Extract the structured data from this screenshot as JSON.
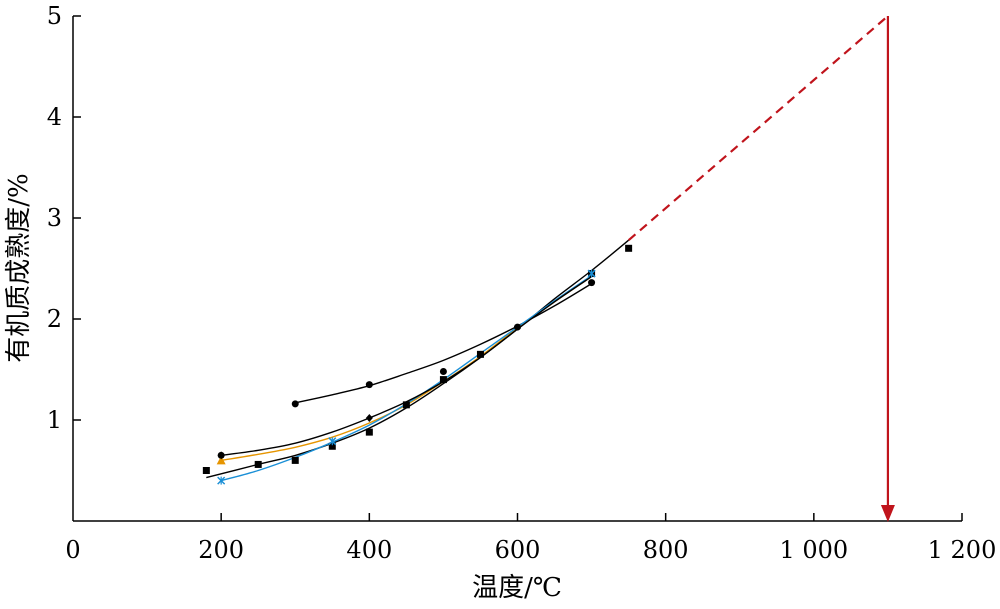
{
  "chart_data": {
    "type": "scatter",
    "xlabel": "温度/℃",
    "ylabel": "有机质成熟度/%",
    "xlim": [
      0,
      1200
    ],
    "ylim": [
      0,
      5
    ],
    "x_ticks": [
      {
        "value": 0,
        "label": "0"
      },
      {
        "value": 200,
        "label": "200"
      },
      {
        "value": 400,
        "label": "400"
      },
      {
        "value": 600,
        "label": "600"
      },
      {
        "value": 800,
        "label": "800"
      },
      {
        "value": 1000,
        "label": "1 000"
      },
      {
        "value": 1200,
        "label": "1 200"
      }
    ],
    "y_ticks": [
      {
        "value": 1,
        "label": "1"
      },
      {
        "value": 2,
        "label": "2"
      },
      {
        "value": 3,
        "label": "3"
      },
      {
        "value": 4,
        "label": "4"
      },
      {
        "value": 5,
        "label": "5"
      }
    ],
    "grid": false,
    "series": [
      {
        "marker": "circle",
        "color": "#000000",
        "points": [
          [
            200,
            0.65
          ],
          [
            300,
            1.16
          ],
          [
            400,
            1.35
          ],
          [
            500,
            1.48
          ],
          [
            600,
            1.92
          ],
          [
            700,
            2.36
          ]
        ],
        "fit": [
          [
            300,
            1.17
          ],
          [
            350,
            1.25
          ],
          [
            400,
            1.34
          ],
          [
            450,
            1.46
          ],
          [
            500,
            1.59
          ],
          [
            550,
            1.75
          ],
          [
            600,
            1.93
          ],
          [
            650,
            2.13
          ],
          [
            700,
            2.35
          ]
        ]
      },
      {
        "marker": "square",
        "color": "#000000",
        "points": [
          [
            180,
            0.5
          ],
          [
            250,
            0.56
          ],
          [
            300,
            0.6
          ],
          [
            350,
            0.74
          ],
          [
            400,
            0.88
          ],
          [
            450,
            1.15
          ],
          [
            500,
            1.4
          ],
          [
            550,
            1.65
          ],
          [
            700,
            2.45
          ],
          [
            750,
            2.7
          ]
        ],
        "fit": [
          [
            180,
            0.43
          ],
          [
            250,
            0.56
          ],
          [
            300,
            0.65
          ],
          [
            350,
            0.77
          ],
          [
            400,
            0.92
          ],
          [
            450,
            1.12
          ],
          [
            500,
            1.36
          ],
          [
            550,
            1.62
          ],
          [
            600,
            1.9
          ],
          [
            650,
            2.2
          ],
          [
            700,
            2.48
          ],
          [
            750,
            2.78
          ]
        ]
      },
      {
        "marker": "triangle",
        "color": "#e69500",
        "points": [
          [
            200,
            0.6
          ]
        ],
        "fit": [
          [
            200,
            0.6
          ],
          [
            250,
            0.66
          ],
          [
            300,
            0.73
          ],
          [
            350,
            0.83
          ],
          [
            400,
            0.97
          ],
          [
            450,
            1.15
          ],
          [
            500,
            1.38
          ],
          [
            550,
            1.63
          ],
          [
            600,
            1.91
          ],
          [
            650,
            2.17
          ],
          [
            700,
            2.42
          ]
        ]
      },
      {
        "marker": "cross",
        "color": "#1a8fd6",
        "points": [
          [
            200,
            0.4
          ],
          [
            350,
            0.79
          ],
          [
            700,
            2.45
          ]
        ],
        "fit": [
          [
            200,
            0.4
          ],
          [
            250,
            0.5
          ],
          [
            300,
            0.63
          ],
          [
            350,
            0.78
          ],
          [
            400,
            0.95
          ],
          [
            450,
            1.16
          ],
          [
            500,
            1.4
          ],
          [
            550,
            1.66
          ],
          [
            600,
            1.92
          ],
          [
            650,
            2.18
          ],
          [
            700,
            2.43
          ]
        ]
      },
      {
        "marker": "diamond",
        "color": "#000000",
        "points": [
          [
            200,
            0.65
          ],
          [
            400,
            1.02
          ]
        ],
        "fit": [
          [
            200,
            0.65
          ],
          [
            250,
            0.7
          ],
          [
            300,
            0.77
          ],
          [
            350,
            0.88
          ],
          [
            400,
            1.02
          ],
          [
            450,
            1.18
          ],
          [
            500,
            1.38
          ],
          [
            550,
            1.62
          ],
          [
            600,
            1.9
          ],
          [
            650,
            2.17
          ],
          [
            700,
            2.42
          ]
        ]
      }
    ],
    "extrapolation": {
      "color": "#c0141c",
      "from": [
        750,
        2.78
      ],
      "to": [
        1100,
        5.0
      ]
    },
    "arrow": {
      "color": "#c0141c",
      "x": 1100,
      "from_y": 5.0,
      "to_y": 0
    }
  }
}
